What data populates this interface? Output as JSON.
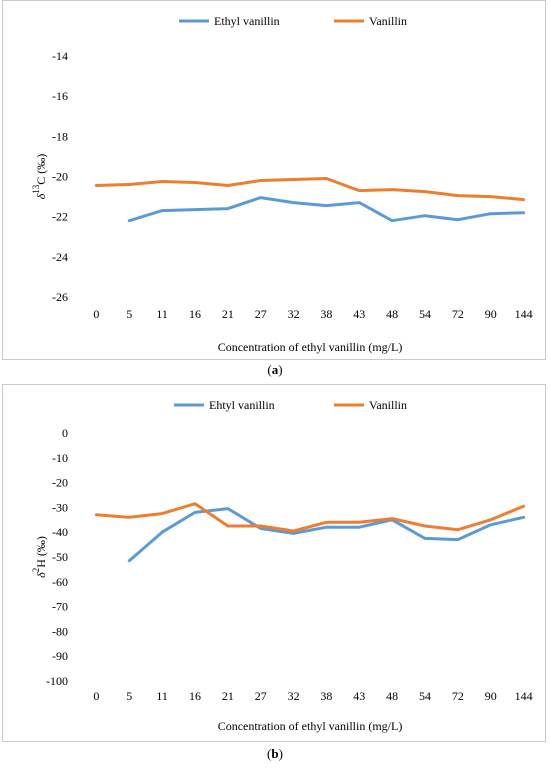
{
  "chart_data": [
    {
      "type": "line",
      "panel_label": "a",
      "xlabel": "Concentration of ethyl vanillin (mg/L)",
      "ylabel_main": "δ",
      "ylabel_sup": "13",
      "ylabel_rest": "C (‰)",
      "categories": [
        "0",
        "5",
        "11",
        "16",
        "21",
        "27",
        "32",
        "38",
        "43",
        "48",
        "54",
        "72",
        "90",
        "144"
      ],
      "ylim": [
        -26,
        -14
      ],
      "yticks": [
        -14,
        -16,
        -18,
        -20,
        -22,
        -24,
        -26
      ],
      "grid": false,
      "legend_position": "top",
      "series": [
        {
          "name": "Ethyl vanillin",
          "color": "#5b9bd5",
          "values": [
            null,
            -22.2,
            -21.7,
            -21.65,
            -21.6,
            -21.05,
            -21.3,
            -21.45,
            -21.3,
            -22.2,
            -21.95,
            -22.15,
            -21.85,
            -21.8
          ]
        },
        {
          "name": "Vanillin",
          "color": "#ed7d31",
          "values": [
            -20.45,
            -20.4,
            -20.25,
            -20.3,
            -20.45,
            -20.2,
            -20.15,
            -20.1,
            -20.7,
            -20.65,
            -20.75,
            -20.95,
            -21.0,
            -21.15
          ]
        }
      ]
    },
    {
      "type": "line",
      "panel_label": "b",
      "xlabel": "Concentration of ethyl vanillin (mg/L)",
      "ylabel_main": "δ",
      "ylabel_sup": "2",
      "ylabel_rest": "H (‰)",
      "categories": [
        "0",
        "5",
        "11",
        "16",
        "21",
        "27",
        "32",
        "38",
        "43",
        "48",
        "54",
        "72",
        "90",
        "144"
      ],
      "ylim": [
        -100,
        0
      ],
      "yticks": [
        0,
        -10,
        -20,
        -30,
        -40,
        -50,
        -60,
        -70,
        -80,
        -90,
        -100
      ],
      "grid": false,
      "legend_position": "top",
      "series": [
        {
          "name": "Ehtyl vanillin",
          "color": "#5b9bd5",
          "values": [
            null,
            -51.5,
            -40,
            -32,
            -30.5,
            -38.5,
            -40.5,
            -38,
            -38,
            -35,
            -42.5,
            -43,
            -37,
            -34
          ]
        },
        {
          "name": "Vanillin",
          "color": "#ed7d31",
          "values": [
            -33,
            -34,
            -32.5,
            -28.5,
            -37.5,
            -37.5,
            -39.5,
            -36,
            -36,
            -34.5,
            -37.5,
            -39,
            -35,
            -29.5
          ]
        }
      ]
    }
  ]
}
